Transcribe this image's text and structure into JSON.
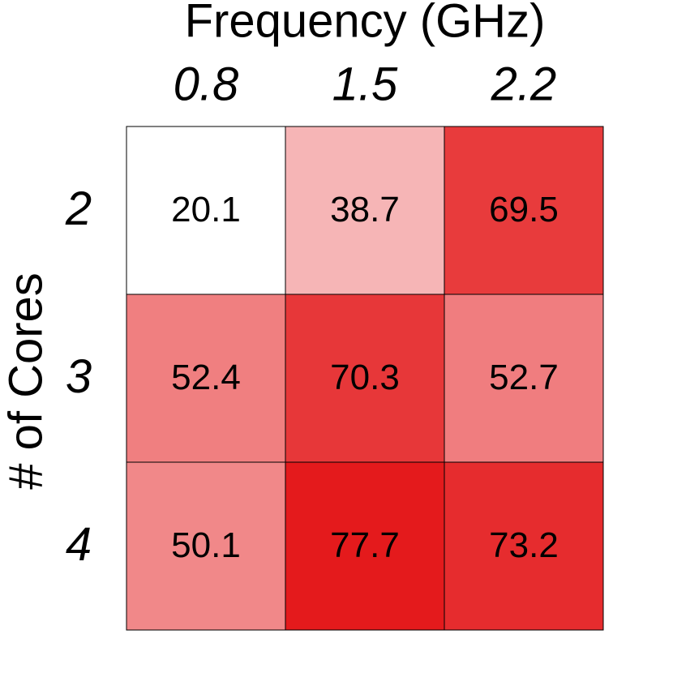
{
  "chart_data": {
    "type": "heatmap",
    "title": "Frequency (GHz)",
    "ylabel": "# of Cores",
    "x_categories": [
      "0.8",
      "1.5",
      "2.2"
    ],
    "y_categories": [
      "2",
      "3",
      "4"
    ],
    "values": [
      [
        20.1,
        38.7,
        69.5
      ],
      [
        52.4,
        70.3,
        52.7
      ],
      [
        50.1,
        77.7,
        73.2
      ]
    ],
    "color_low": "#ffffff",
    "color_high": "#e41a1c"
  }
}
